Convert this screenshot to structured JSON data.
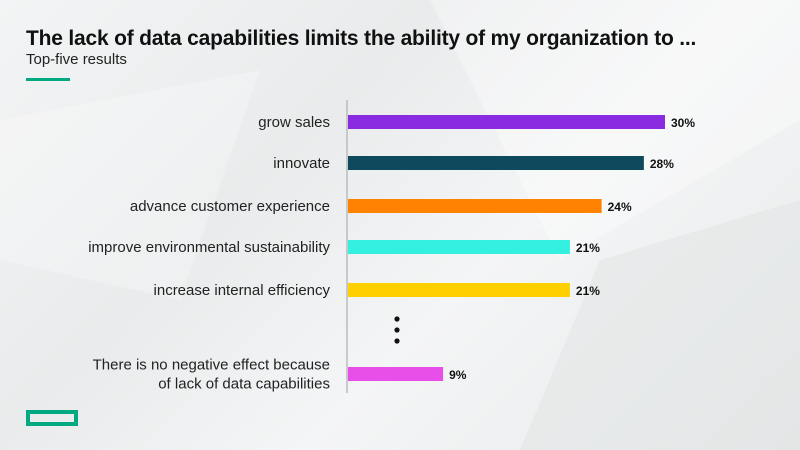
{
  "title": "The lack of data capabilities limits the ability of my organization to ...",
  "subtitle": "Top-five results",
  "colors": {
    "accent": "#01a982",
    "axis": "#b9bcbe"
  },
  "logo_icon": "hpe-rectangle-logo-icon",
  "ellipsis_icon": "vertical-ellipsis-icon",
  "chart_data": {
    "type": "bar",
    "orientation": "horizontal",
    "title": "The lack of data capabilities limits the ability of my organization to ...",
    "subtitle": "Top-five results",
    "xlim": [
      0,
      30
    ],
    "unit": "%",
    "categories": [
      [
        "grow sales"
      ],
      [
        "innovate"
      ],
      [
        "advance customer experience"
      ],
      [
        "improve environmental sustainability"
      ],
      [
        "increase internal efficiency"
      ],
      [
        "There is no negative effect because",
        "of lack of data capabilities"
      ]
    ],
    "values": [
      30,
      28,
      24,
      21,
      21,
      9
    ],
    "value_labels": [
      "30%",
      "28%",
      "24%",
      "21%",
      "21%",
      "9%"
    ],
    "bar_colors": [
      "#8a2be2",
      "#0e4a5e",
      "#ff8300",
      "#33f0e0",
      "#ffd000",
      "#e84fe8"
    ],
    "gap_marker_after_index": 4
  }
}
